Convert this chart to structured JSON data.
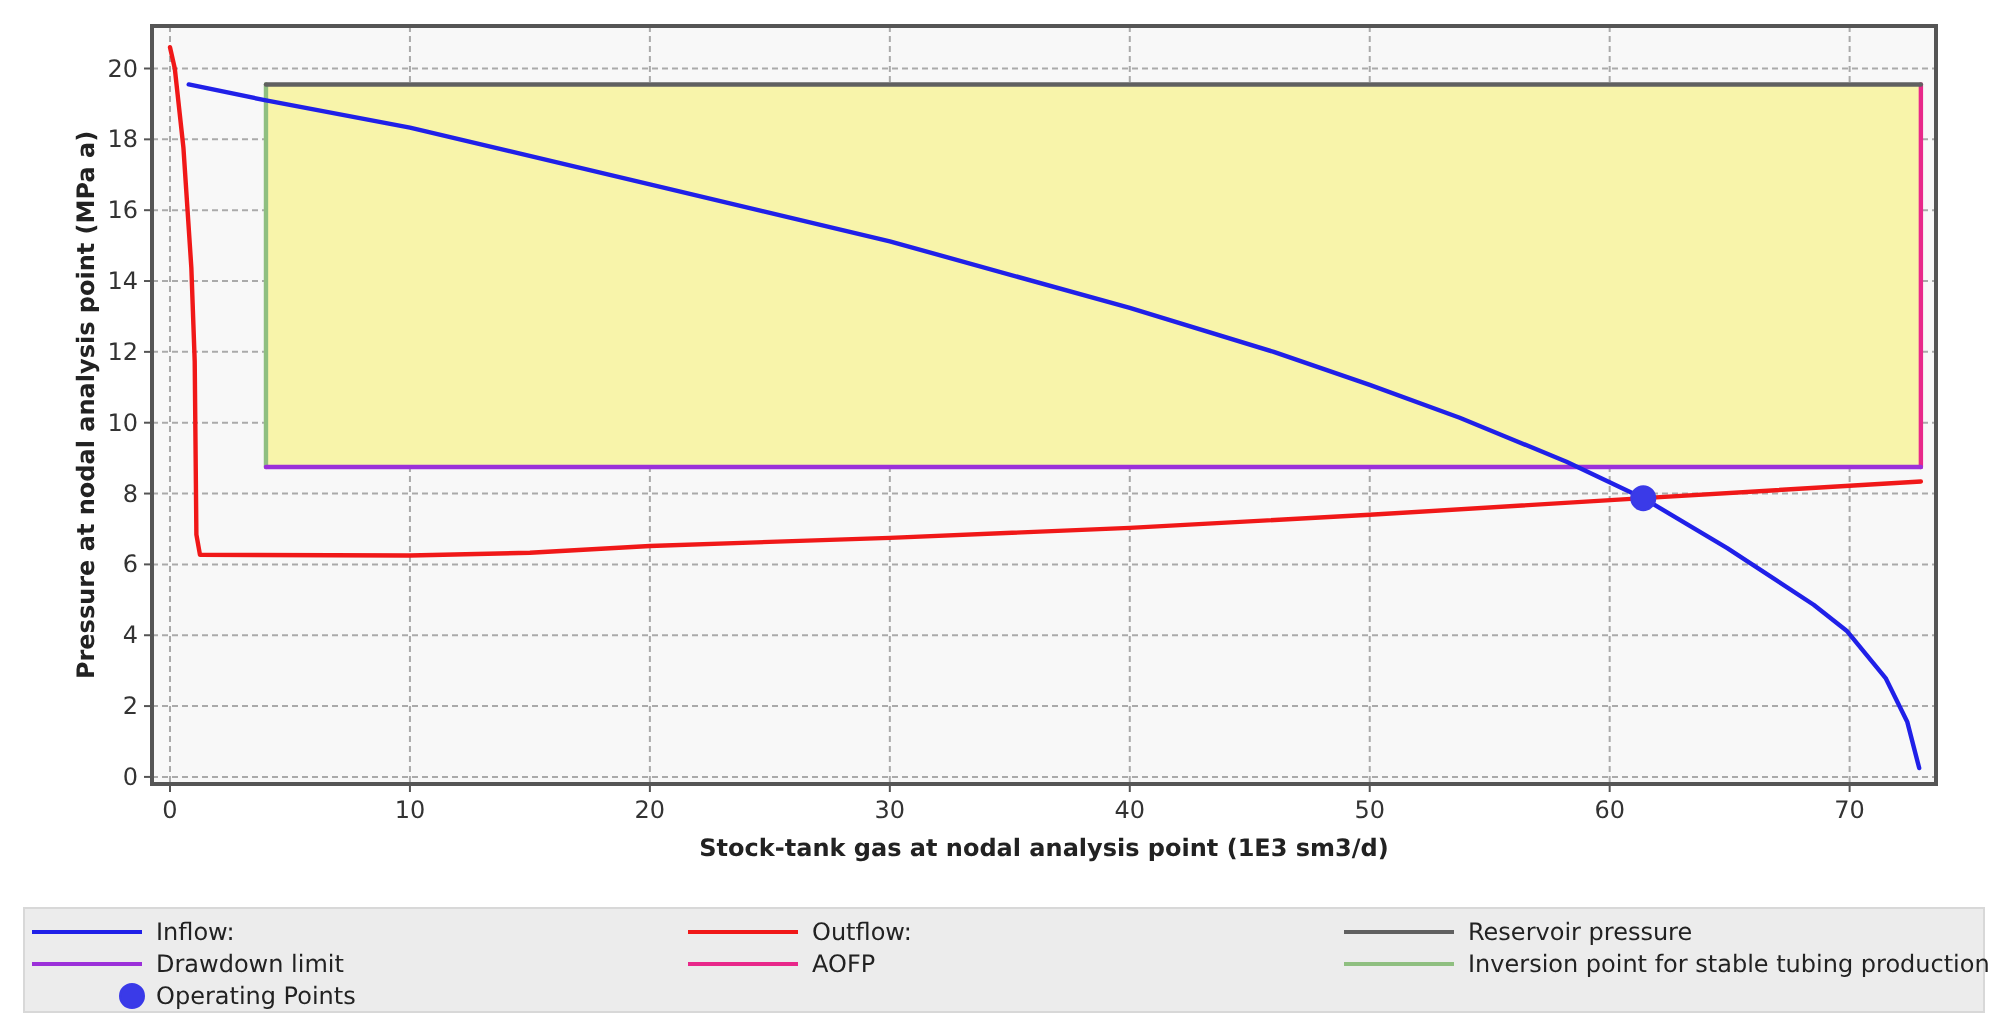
{
  "chart_data": {
    "type": "line",
    "xlabel": "Stock-tank gas at nodal analysis point (1E3 sm3/d)",
    "ylabel": "Pressure at nodal analysis point (MPa a)",
    "xlim": [
      -0.75,
      73.6
    ],
    "ylim": [
      -0.2,
      21.2
    ],
    "xticks": [
      0,
      10,
      20,
      30,
      40,
      50,
      60,
      70
    ],
    "yticks": [
      0,
      2,
      4,
      6,
      8,
      10,
      12,
      14,
      16,
      18,
      20
    ],
    "grid": true,
    "legend": "bottom",
    "line_style": "solid",
    "series": [
      {
        "name": "Inflow:",
        "color": "#2020e8",
        "marker": "none",
        "x": [
          0.78,
          4,
          10,
          20,
          30,
          40,
          46,
          50,
          53.75,
          58.2,
          61.4,
          64.9,
          68.5,
          69.9,
          71.5,
          72.4,
          72.9
        ],
        "values": [
          19.55,
          19.1,
          18.33,
          16.73,
          15.12,
          13.24,
          12.0,
          11.07,
          10.14,
          8.9,
          7.87,
          6.46,
          4.86,
          4.11,
          2.79,
          1.56,
          0.25
        ]
      },
      {
        "name": "Outflow:",
        "color": "#f01818",
        "marker": "none",
        "x": [
          0,
          0.2,
          0.56,
          0.89,
          1.03,
          1.1,
          1.25,
          10,
          15,
          20,
          30,
          40,
          50,
          61.4,
          72.97
        ],
        "values": [
          20.6,
          20.0,
          17.76,
          14.37,
          11.73,
          6.84,
          6.27,
          6.25,
          6.33,
          6.52,
          6.75,
          7.03,
          7.4,
          7.87,
          8.34
        ]
      },
      {
        "name": "Reservoir pressure",
        "type": "line",
        "color": "#606060",
        "marker": "none",
        "x": [
          4,
          72.97
        ],
        "values": [
          19.55,
          19.55
        ],
        "lower": [
          8.75,
          8.75
        ],
        "upper": [
          19.55,
          19.55
        ]
      },
      {
        "name": "Drawdown limit",
        "type": "line",
        "color": "#9b30d9",
        "marker": "none",
        "x": [
          4,
          72.97
        ],
        "values": [
          8.75,
          8.75
        ]
      },
      {
        "name": "AOFP",
        "type": "line",
        "color": "#e8288a",
        "marker": "none",
        "x": [
          72.97,
          72.97
        ],
        "values": [
          8.75,
          19.55
        ]
      },
      {
        "name": "Inversion point for stable tubing production",
        "type": "line",
        "color": "#8fbf80",
        "marker": "none",
        "x": [
          4,
          4
        ],
        "values": [
          8.75,
          19.55
        ]
      },
      {
        "name": "Operating Points",
        "type": "scatter",
        "color": "#3a3ae8",
        "marker": "circle",
        "x": [
          61.4
        ],
        "values": [
          7.87
        ]
      }
    ]
  }
}
